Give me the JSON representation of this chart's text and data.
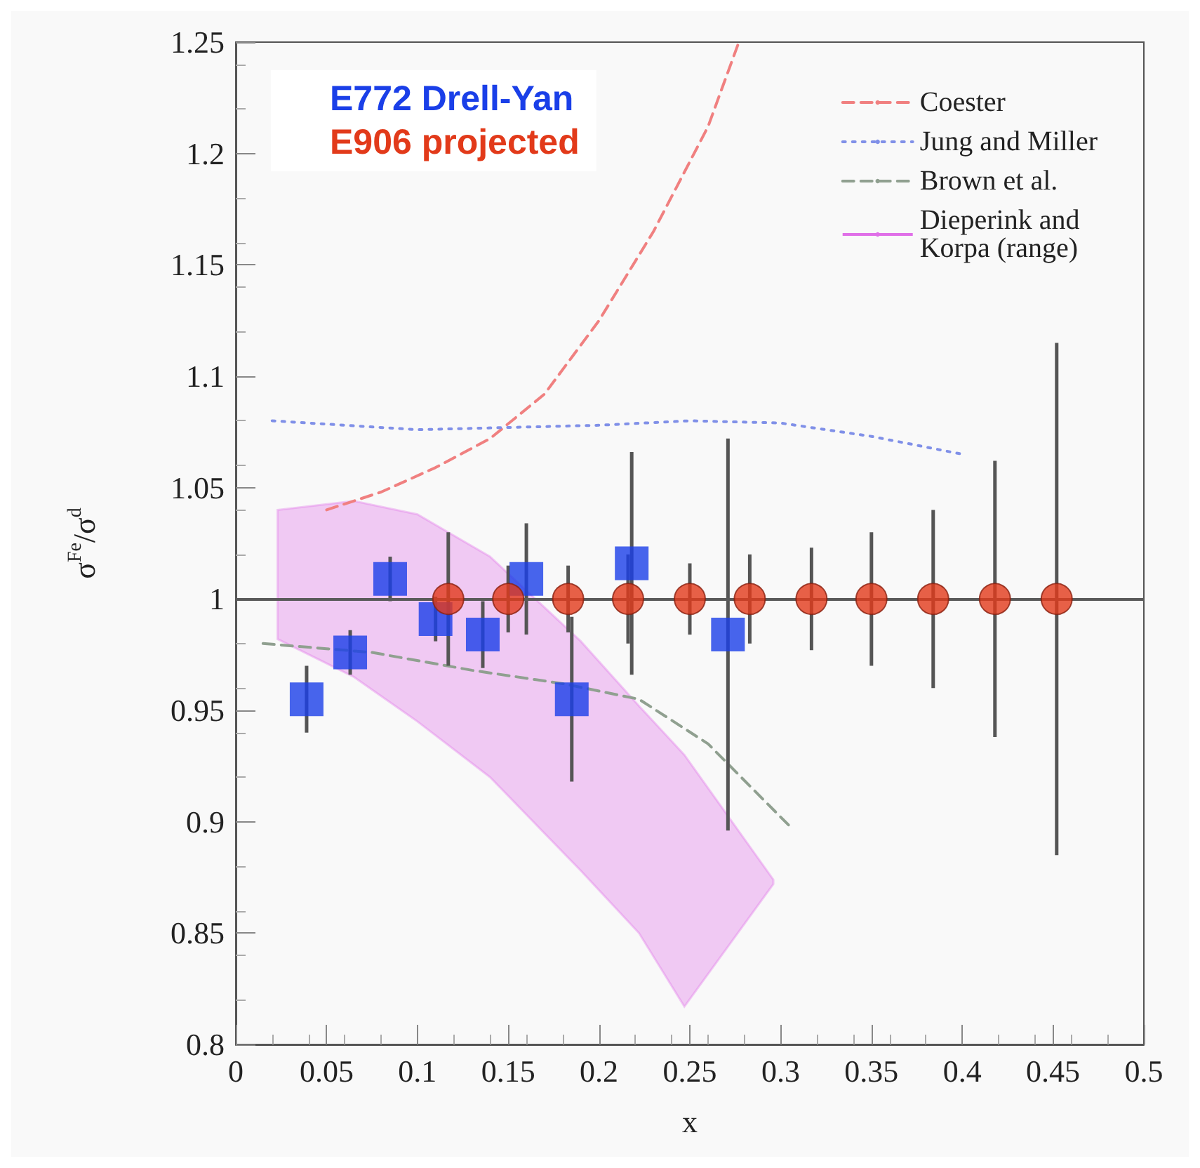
{
  "chart_data": {
    "type": "scatter",
    "xlabel": "x",
    "ylabel": "σ$^{Fe}$/σ$^{d}$",
    "xlim": [
      0,
      0.5
    ],
    "ylim": [
      0.8,
      1.25
    ],
    "xticks": [
      0,
      0.05,
      0.1,
      0.15,
      0.2,
      0.25,
      0.3,
      0.35,
      0.4,
      0.45,
      0.5
    ],
    "yticks": [
      0.8,
      0.85,
      0.9,
      0.95,
      1,
      1.05,
      1.1,
      1.15,
      1.2,
      1.25
    ],
    "grid": false,
    "legend": "top right",
    "ref_lines": [
      {
        "axis": "y",
        "value": 1,
        "color": "#5a5a5a",
        "line_style": "solid"
      }
    ],
    "series": [
      {
        "name": "Coester",
        "type": "line",
        "color": "#f08080",
        "line_style": "dashed",
        "marker": "none",
        "x": [
          0.05,
          0.08,
          0.11,
          0.14,
          0.17,
          0.2,
          0.23,
          0.26,
          0.277
        ],
        "values": [
          1.04,
          1.048,
          1.059,
          1.072,
          1.092,
          1.125,
          1.165,
          1.212,
          1.25
        ]
      },
      {
        "name": "Jung and Miller",
        "type": "line",
        "color": "#8090e8",
        "line_style": "dotted",
        "marker": "none",
        "x": [
          0.02,
          0.1,
          0.2,
          0.25,
          0.3,
          0.35,
          0.4
        ],
        "values": [
          1.08,
          1.076,
          1.078,
          1.08,
          1.079,
          1.073,
          1.065
        ]
      },
      {
        "name": "Brown et al.",
        "type": "line",
        "color": "#90a090",
        "line_style": "dashed",
        "marker": "none",
        "x": [
          0.015,
          0.075,
          0.13,
          0.18,
          0.222,
          0.26,
          0.305
        ],
        "values": [
          0.98,
          0.976,
          0.968,
          0.962,
          0.955,
          0.935,
          0.898
        ]
      },
      {
        "name": "Dieperink and Korpa (range)",
        "type": "area",
        "color": "#e070e8",
        "line_style": "solid",
        "x": [
          0.023,
          0.065,
          0.1,
          0.14,
          0.19,
          0.222,
          0.247,
          0.296
        ],
        "values": [
          null,
          null,
          null,
          null,
          null,
          null,
          null,
          null
        ],
        "lower": [
          0.982,
          0.965,
          0.945,
          0.92,
          0.878,
          0.85,
          0.817,
          0.872
        ],
        "upper": [
          1.04,
          1.044,
          1.038,
          1.019,
          0.981,
          0.952,
          0.93,
          0.874
        ]
      },
      {
        "name": "E772 Drell-Yan",
        "color": "#1a3fe8",
        "marker": "square",
        "x": [
          0.039,
          0.063,
          0.085,
          0.11,
          0.136,
          0.16,
          0.185,
          0.218,
          0.271
        ],
        "values": [
          0.955,
          0.976,
          1.009,
          0.991,
          0.984,
          1.009,
          0.955,
          1.016,
          0.984
        ],
        "errors": [
          0.015,
          0.01,
          0.01,
          0.01,
          0.015,
          0.025,
          0.037,
          0.05,
          0.088
        ]
      },
      {
        "name": "E906 projected",
        "color": "#e23a1a",
        "marker": "circle",
        "x": [
          0.117,
          0.15,
          0.183,
          0.216,
          0.25,
          0.283,
          0.317,
          0.35,
          0.384,
          0.418,
          0.452
        ],
        "values": [
          1,
          1,
          1,
          1,
          1,
          1,
          1,
          1,
          1,
          1,
          1
        ],
        "errors": [
          0.03,
          0.015,
          0.015,
          0.02,
          0.016,
          0.02,
          0.023,
          0.03,
          0.04,
          0.062,
          0.115
        ]
      }
    ]
  }
}
